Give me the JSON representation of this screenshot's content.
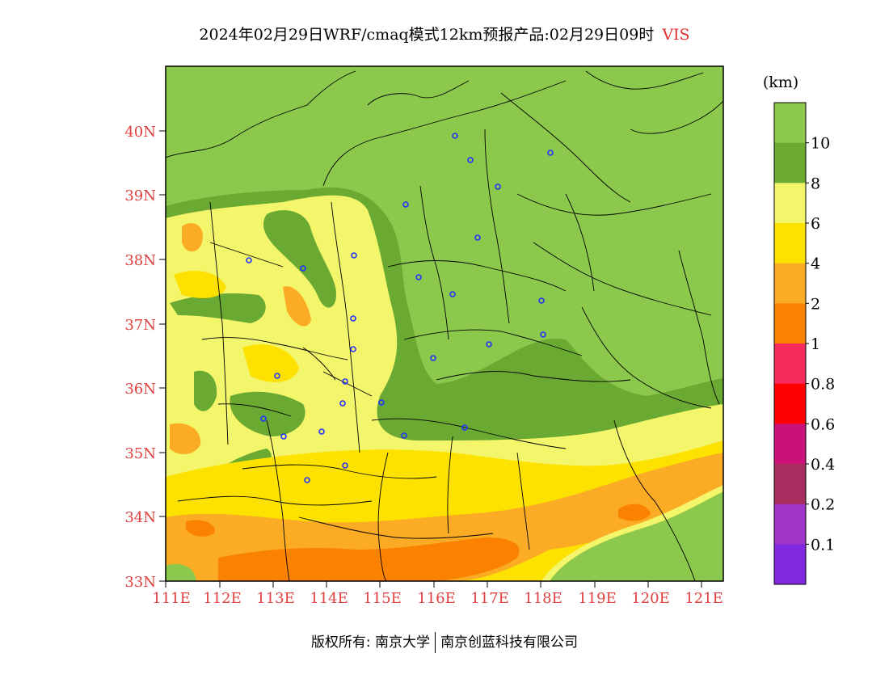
{
  "title": {
    "text": "2024年02月29日WRF/cmaq模式12km预报产品:02月29日09时",
    "variable": "VIS"
  },
  "colorbar": {
    "unit": "(km)",
    "colors": [
      "#8cc84b",
      "#6aaa32",
      "#f3f56a",
      "#fde200",
      "#fbab24",
      "#fa8200",
      "#f62b5b",
      "#ff0000",
      "#cc107a",
      "#a82c5e",
      "#9e35c7",
      "#8127e0"
    ],
    "labels": [
      "10",
      "8",
      "6",
      "4",
      "2",
      "1",
      "0.8",
      "0.6",
      "0.4",
      "0.2",
      "0.1"
    ]
  },
  "map": {
    "lat_labels": [
      "33N",
      "34N",
      "35N",
      "36N",
      "37N",
      "38N",
      "39N",
      "40N"
    ],
    "lon_labels": [
      "111E",
      "112E",
      "113E",
      "114E",
      "115E",
      "116E",
      "117E",
      "118E",
      "119E",
      "120E",
      "121E"
    ],
    "label_color": "#e04040"
  },
  "footer": {
    "left": "版权所有: 南京大学",
    "right": "南京创蓝科技有限公司"
  }
}
